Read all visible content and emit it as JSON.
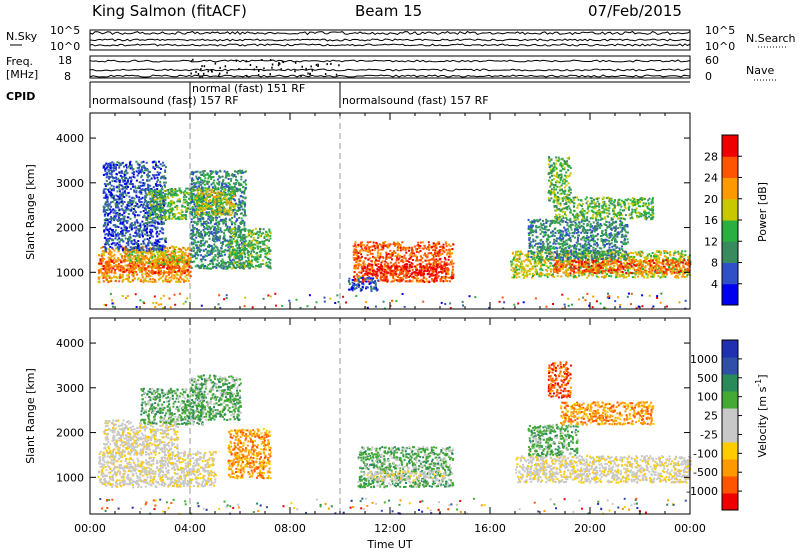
{
  "header": {
    "station": "King Salmon (fitACF)",
    "beam": "Beam 15",
    "date": "07/Feb/2015"
  },
  "top_panels": {
    "nsky_label": "N.Sky",
    "nsky_ticks": [
      "10^5",
      "10^0"
    ],
    "nsearch_label": "N.Search",
    "nsearch_ticks": [
      "10^5",
      "10^0"
    ],
    "freq_label_1": "Freq.",
    "freq_label_2": "[MHz]",
    "freq_ticks": [
      "18",
      "8"
    ],
    "nave_label": "Nave",
    "nave_ticks": [
      "60",
      "0"
    ],
    "cpid_label": "CPID",
    "cpid_segments": [
      {
        "label": "normalsound (fast) 157 RF",
        "start_h": 0,
        "end_h": 4.0
      },
      {
        "label": "normal (fast) 151 RF",
        "start_h": 4.0,
        "end_h": 10.0
      },
      {
        "label": "normalsound (fast) 157 RF",
        "start_h": 10.0,
        "end_h": 24.0
      }
    ]
  },
  "colors": {
    "power": [
      "#0000ee",
      "#3050c8",
      "#3a8a60",
      "#2ab040",
      "#c8c800",
      "#ff9900",
      "#ff5500",
      "#ee0000"
    ],
    "velocity": [
      "#ee0000",
      "#ff5500",
      "#ff9900",
      "#ffcc00",
      "#c8c8c8",
      "#c8c8c8",
      "#44aa33",
      "#2a8a5a",
      "#3050a8",
      "#2030b0"
    ]
  },
  "chart_data": [
    {
      "type": "heatmap",
      "name_panel": "power",
      "ylabel": "Slant Range [km]",
      "xlabel": "Time UT",
      "x_ticks": [
        "00:00",
        "04:00",
        "08:00",
        "12:00",
        "16:00",
        "20:00",
        "00:00"
      ],
      "x_range_hours": [
        0,
        24
      ],
      "y_ticks": [
        1000,
        2000,
        3000,
        4000
      ],
      "y_range_km": [
        180,
        4560
      ],
      "colorbar": {
        "label": "Power [dB]",
        "ticks": [
          4,
          8,
          12,
          16,
          20,
          24,
          28
        ],
        "range": [
          0,
          32
        ]
      },
      "scatter_regions": [
        {
          "t0": 0.3,
          "t1": 4.0,
          "r0": 800,
          "r1": 1600,
          "level": 5
        },
        {
          "t0": 0.3,
          "t1": 4.0,
          "r0": 1000,
          "r1": 1300,
          "level": 6
        },
        {
          "t0": 1.5,
          "t1": 3.8,
          "r0": 1200,
          "r1": 1500,
          "level": 4
        },
        {
          "t0": 0.5,
          "t1": 3.0,
          "r0": 1500,
          "r1": 3500,
          "level": 1
        },
        {
          "t0": 2.3,
          "t1": 4.5,
          "r0": 2200,
          "r1": 2900,
          "level": 3
        },
        {
          "t0": 4.0,
          "t1": 6.2,
          "r0": 1100,
          "r1": 3300,
          "level": 2
        },
        {
          "t0": 4.2,
          "t1": 5.8,
          "r0": 2300,
          "r1": 2900,
          "level": 4
        },
        {
          "t0": 5.5,
          "t1": 7.2,
          "r0": 1100,
          "r1": 2000,
          "level": 3
        },
        {
          "t0": 10.5,
          "t1": 14.5,
          "r0": 800,
          "r1": 1700,
          "level": 6
        },
        {
          "t0": 10.8,
          "t1": 14.3,
          "r0": 950,
          "r1": 1200,
          "level": 7
        },
        {
          "t0": 10.3,
          "t1": 11.5,
          "r0": 600,
          "r1": 900,
          "level": 1
        },
        {
          "t0": 16.8,
          "t1": 24.0,
          "r0": 900,
          "r1": 1500,
          "level": 4
        },
        {
          "t0": 18.5,
          "t1": 24.0,
          "r0": 1000,
          "r1": 1300,
          "level": 6
        },
        {
          "t0": 17.5,
          "t1": 21.5,
          "r0": 1300,
          "r1": 2200,
          "level": 2
        },
        {
          "t0": 18.5,
          "t1": 22.5,
          "r0": 2200,
          "r1": 2700,
          "level": 3
        },
        {
          "t0": 18.3,
          "t1": 19.2,
          "r0": 2600,
          "r1": 3600,
          "level": 3
        }
      ]
    },
    {
      "type": "heatmap",
      "name_panel": "velocity",
      "ylabel": "Slant Range [km]",
      "xlabel": "Time UT",
      "x_ticks": [
        "00:00",
        "04:00",
        "08:00",
        "12:00",
        "16:00",
        "20:00",
        "00:00"
      ],
      "x_range_hours": [
        0,
        24
      ],
      "y_ticks": [
        1000,
        2000,
        3000,
        4000
      ],
      "y_range_km": [
        180,
        4560
      ],
      "colorbar": {
        "label": "Velocity [m s^-1]",
        "ticks": [
          -1000,
          -500,
          -100,
          -25,
          25,
          100,
          500,
          1000
        ],
        "range": [
          -1000,
          1000
        ]
      },
      "scatter_regions": [
        {
          "t0": 0.3,
          "t1": 5.0,
          "r0": 800,
          "r1": 1600,
          "level": 4
        },
        {
          "t0": 0.5,
          "t1": 3.5,
          "r0": 1600,
          "r1": 2300,
          "level": 4
        },
        {
          "t0": 2.0,
          "t1": 4.5,
          "r0": 2200,
          "r1": 3000,
          "level": 6
        },
        {
          "t0": 4.0,
          "t1": 6.0,
          "r0": 2300,
          "r1": 3300,
          "level": 6
        },
        {
          "t0": 5.5,
          "t1": 7.2,
          "r0": 1000,
          "r1": 2100,
          "level": 2
        },
        {
          "t0": 10.7,
          "t1": 14.5,
          "r0": 800,
          "r1": 1700,
          "level": 6
        },
        {
          "t0": 11.0,
          "t1": 14.2,
          "r0": 950,
          "r1": 1150,
          "level": 4
        },
        {
          "t0": 17.0,
          "t1": 24.0,
          "r0": 900,
          "r1": 1500,
          "level": 4
        },
        {
          "t0": 17.5,
          "t1": 19.5,
          "r0": 1500,
          "r1": 2200,
          "level": 6
        },
        {
          "t0": 18.8,
          "t1": 22.5,
          "r0": 2200,
          "r1": 2700,
          "level": 2
        },
        {
          "t0": 18.3,
          "t1": 19.2,
          "r0": 2800,
          "r1": 3600,
          "level": 1
        }
      ]
    }
  ]
}
